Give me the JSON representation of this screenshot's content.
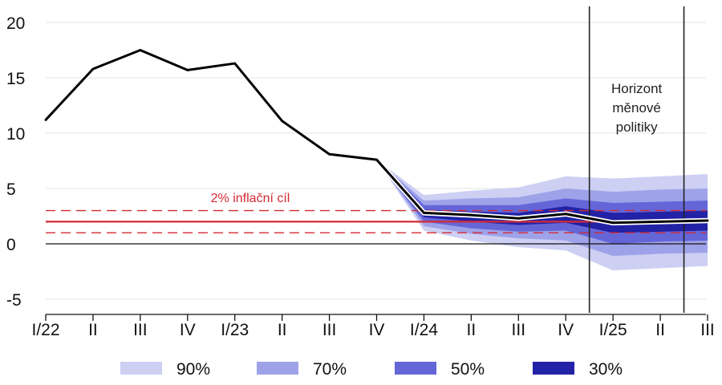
{
  "chart_data": {
    "type": "line",
    "title": "",
    "xlabel": "",
    "ylabel": "",
    "ylim": [
      -5,
      20
    ],
    "yticks": [
      -5,
      0,
      5,
      10,
      15,
      20
    ],
    "grid": "horizontal",
    "legend_placement": "bottom",
    "x_tick_labels": [
      "I/22",
      "II",
      "III",
      "IV",
      "I/23",
      "II",
      "III",
      "IV",
      "I/24",
      "II",
      "III",
      "IV",
      "I/25",
      "II",
      "III"
    ],
    "series": [
      {
        "values": [
          11.2,
          15.8,
          17.5,
          15.7,
          16.3,
          11.1,
          8.1,
          7.6,
          2.8,
          2.6,
          2.3,
          2.7,
          1.9,
          2.0,
          2.1
        ],
        "color": "#000000"
      }
    ],
    "fan_start_index": 7,
    "fan_bands": [
      {
        "label": "90%",
        "color": "#cdd0f3",
        "lower": [
          7.6,
          1.2,
          0.3,
          -0.3,
          -0.6,
          -2.4,
          -2.2,
          -2.0
        ],
        "upper": [
          7.6,
          4.4,
          4.8,
          5.1,
          6.1,
          5.9,
          6.1,
          6.3
        ]
      },
      {
        "label": "70%",
        "color": "#9ea2e8",
        "lower": [
          7.6,
          1.6,
          0.9,
          0.5,
          0.3,
          -1.1,
          -0.9,
          -0.8
        ],
        "upper": [
          7.6,
          3.9,
          4.1,
          4.2,
          5.0,
          4.7,
          4.9,
          5.0
        ]
      },
      {
        "label": "50%",
        "color": "#6466d8",
        "lower": [
          7.6,
          2.0,
          1.4,
          1.1,
          1.2,
          0.0,
          0.2,
          0.3
        ],
        "upper": [
          7.6,
          3.5,
          3.5,
          3.5,
          4.1,
          3.7,
          3.8,
          3.9
        ]
      },
      {
        "label": "30%",
        "color": "#2222a6",
        "lower": [
          7.6,
          2.4,
          2.0,
          1.7,
          1.9,
          1.0,
          1.1,
          1.2
        ],
        "upper": [
          7.6,
          3.1,
          2.9,
          2.8,
          3.4,
          2.8,
          2.9,
          3.0
        ]
      }
    ],
    "target": {
      "value": 2,
      "tolerance": [
        1,
        3
      ],
      "label": "2% inflační cíl",
      "color": "#d42a34"
    },
    "horizon": {
      "label_lines": [
        "Horizont",
        "měnové",
        "politiky"
      ],
      "bounds": [
        11.5,
        13.5
      ]
    },
    "legend": [
      {
        "label": "90%",
        "color": "#cdd0f3"
      },
      {
        "label": "70%",
        "color": "#9ea2e8"
      },
      {
        "label": "50%",
        "color": "#6466d8"
      },
      {
        "label": "30%",
        "color": "#2222a6"
      }
    ]
  }
}
